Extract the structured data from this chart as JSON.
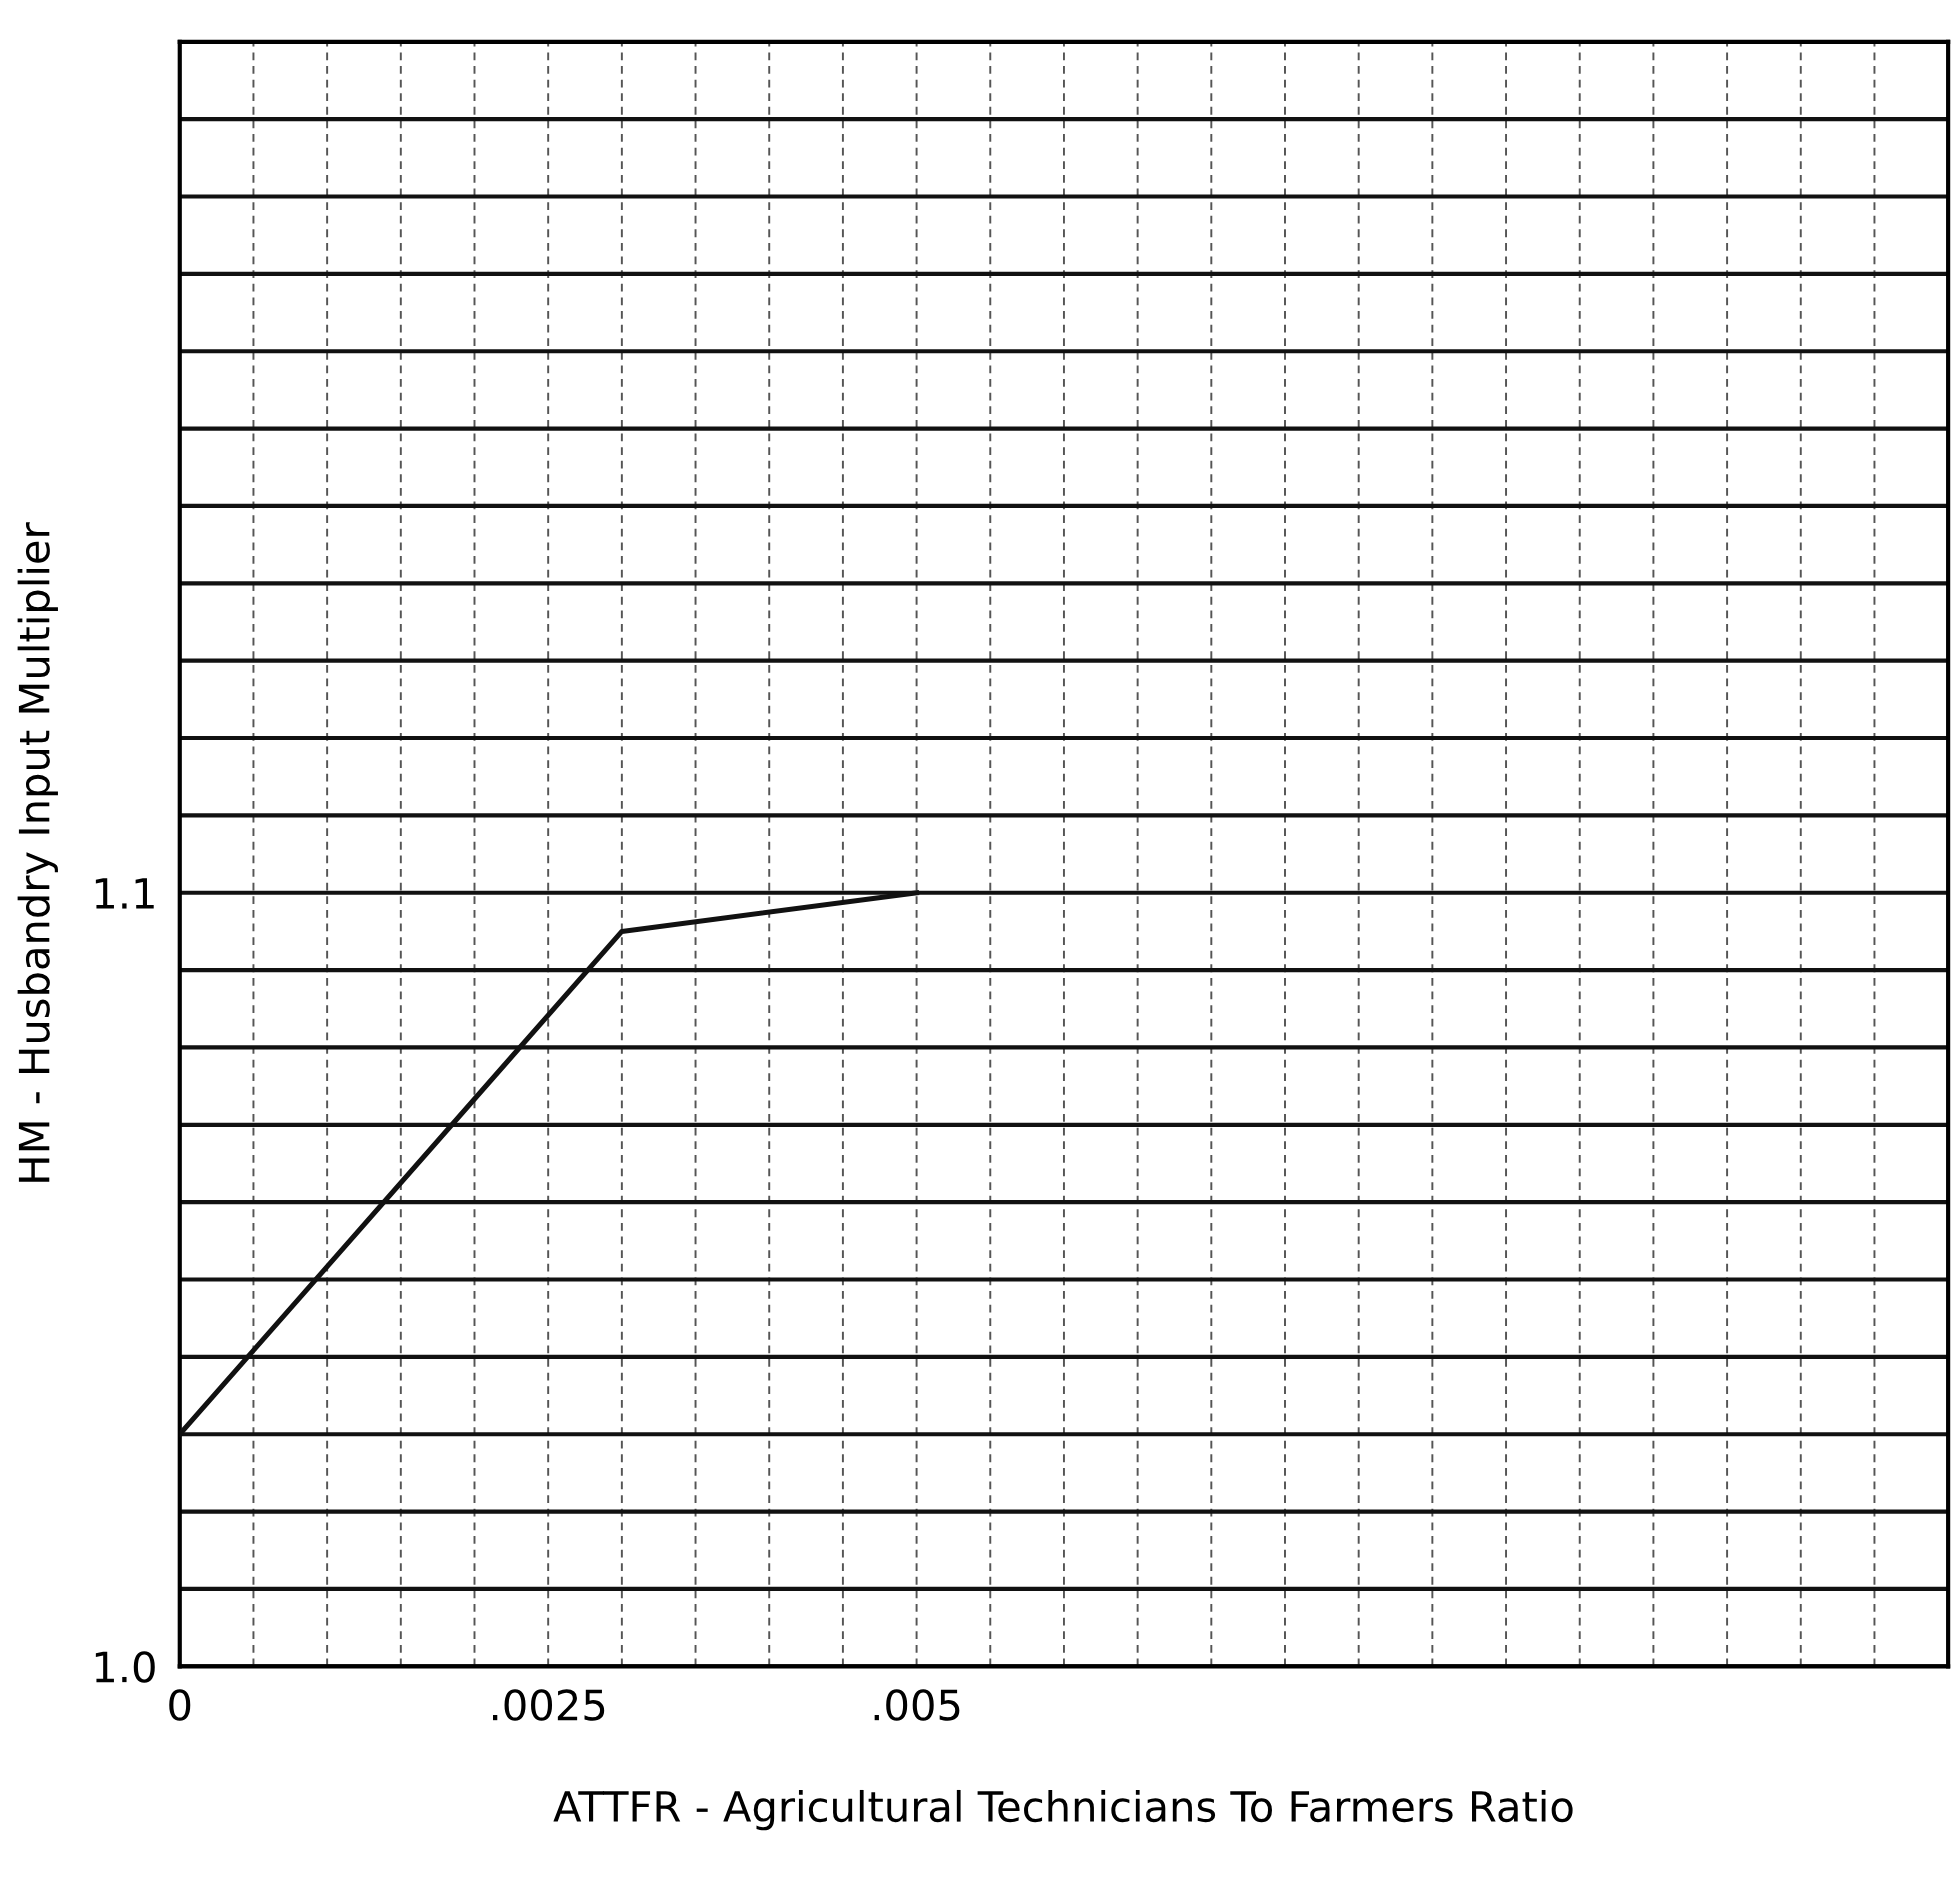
{
  "chart_data": {
    "type": "line",
    "xlabel": "ATTFR - Agricultural Technicians To Farmers Ratio",
    "ylabel": "HM - Husbandry Input Multiplier",
    "x": [
      0,
      0.003,
      0.005
    ],
    "series": [
      {
        "color": "#111111",
        "values": [
          1.03,
          1.095,
          1.1
        ]
      }
    ],
    "xlim": [
      0,
      0.012
    ],
    "ylim": [
      1.0,
      1.21
    ],
    "xticks": [
      {
        "value": 0,
        "label": "0"
      },
      {
        "value": 0.0005,
        "label": null
      },
      {
        "value": 0.001,
        "label": null
      },
      {
        "value": 0.0015,
        "label": null
      },
      {
        "value": 0.002,
        "label": null
      },
      {
        "value": 0.0025,
        "label": ".0025"
      },
      {
        "value": 0.003,
        "label": null
      },
      {
        "value": 0.0035,
        "label": null
      },
      {
        "value": 0.004,
        "label": null
      },
      {
        "value": 0.0045,
        "label": null
      },
      {
        "value": 0.005,
        "label": ".005"
      },
      {
        "value": 0.0055,
        "label": null
      },
      {
        "value": 0.006,
        "label": null
      },
      {
        "value": 0.0065,
        "label": null
      },
      {
        "value": 0.007,
        "label": null
      },
      {
        "value": 0.0075,
        "label": null
      },
      {
        "value": 0.008,
        "label": null
      },
      {
        "value": 0.0085,
        "label": null
      },
      {
        "value": 0.009,
        "label": null
      },
      {
        "value": 0.0095,
        "label": null
      },
      {
        "value": 0.01,
        "label": null
      },
      {
        "value": 0.0105,
        "label": null
      },
      {
        "value": 0.011,
        "label": null
      },
      {
        "value": 0.0115,
        "label": null
      },
      {
        "value": 0.012,
        "label": null
      }
    ],
    "yticks": [
      {
        "value": 1.0,
        "label": "1.0"
      },
      {
        "value": 1.01,
        "label": null
      },
      {
        "value": 1.02,
        "label": null
      },
      {
        "value": 1.03,
        "label": null
      },
      {
        "value": 1.04,
        "label": null
      },
      {
        "value": 1.05,
        "label": null
      },
      {
        "value": 1.06,
        "label": null
      },
      {
        "value": 1.07,
        "label": null
      },
      {
        "value": 1.08,
        "label": null
      },
      {
        "value": 1.09,
        "label": null
      },
      {
        "value": 1.1,
        "label": "1.1"
      },
      {
        "value": 1.11,
        "label": null
      },
      {
        "value": 1.12,
        "label": null
      },
      {
        "value": 1.13,
        "label": null
      },
      {
        "value": 1.14,
        "label": null
      },
      {
        "value": 1.15,
        "label": null
      },
      {
        "value": 1.16,
        "label": null
      },
      {
        "value": 1.17,
        "label": null
      },
      {
        "value": 1.18,
        "label": null
      },
      {
        "value": 1.19,
        "label": null
      },
      {
        "value": 1.2,
        "label": null
      },
      {
        "value": 1.21,
        "label": null
      }
    ],
    "grid": true,
    "line_style": "solid",
    "marker": "none"
  }
}
